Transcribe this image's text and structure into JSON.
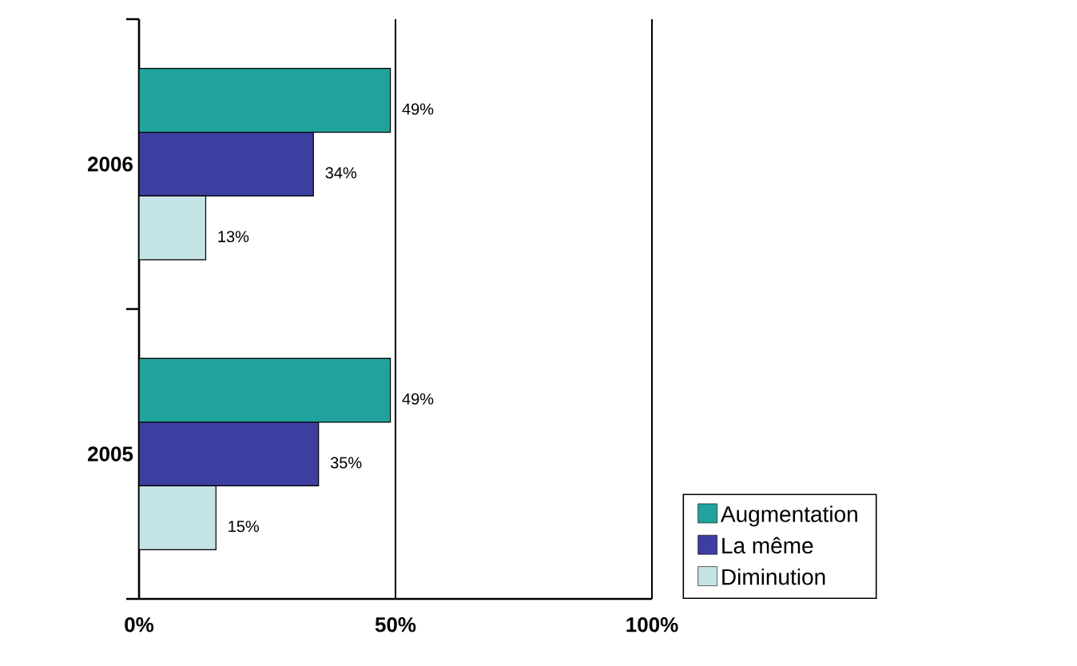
{
  "chart_data": {
    "type": "bar",
    "orientation": "horizontal",
    "categories": [
      "2006",
      "2005"
    ],
    "series": [
      {
        "name": "Augmentation",
        "color": "#1fa39c",
        "values": [
          49,
          49
        ],
        "value_labels": [
          "49%",
          "49%"
        ]
      },
      {
        "name": "La même",
        "color": "#3c3f9f",
        "values": [
          34,
          35
        ],
        "value_labels": [
          "34%",
          "35%"
        ]
      },
      {
        "name": "Diminution",
        "color": "#c4e3e4",
        "values": [
          13,
          15
        ],
        "value_labels": [
          "13%",
          "15%"
        ]
      }
    ],
    "xlim": [
      0,
      100
    ],
    "xticks": [
      {
        "value": 0,
        "label": "0%"
      },
      {
        "value": 50,
        "label": "50%"
      },
      {
        "value": 100,
        "label": "100%"
      }
    ],
    "grid": "x",
    "legend": "bottom right"
  }
}
